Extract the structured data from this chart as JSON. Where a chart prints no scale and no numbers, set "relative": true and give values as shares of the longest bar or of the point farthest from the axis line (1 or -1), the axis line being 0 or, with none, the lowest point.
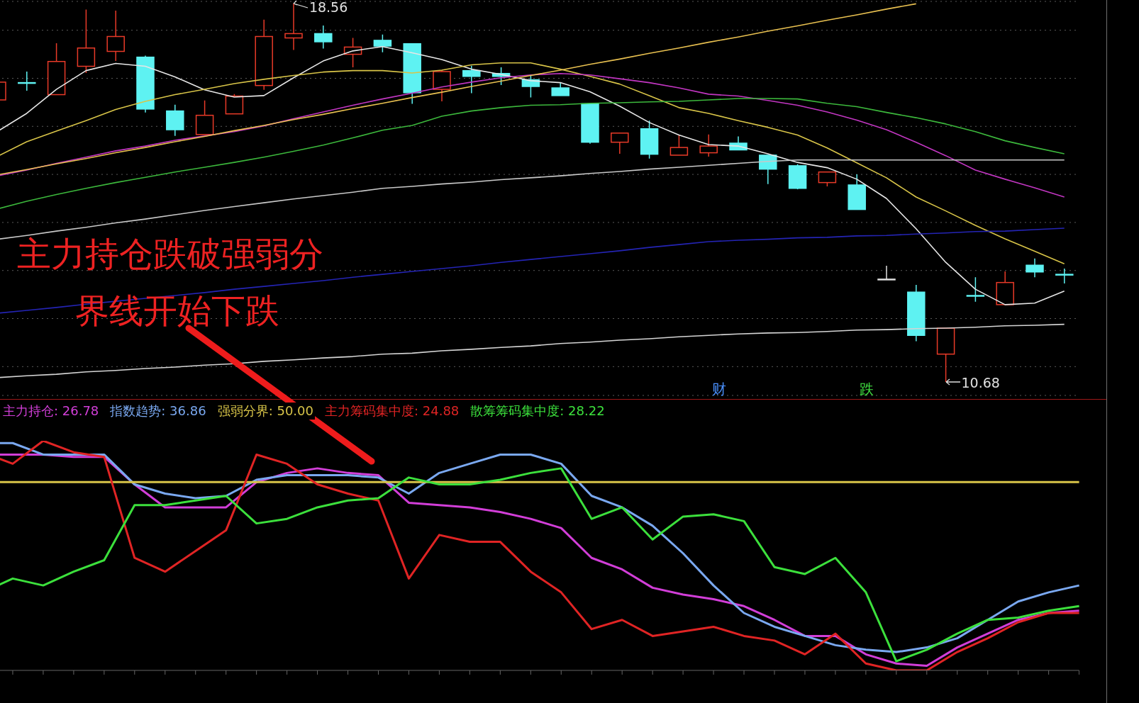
{
  "chart_data": [
    {
      "type": "candlestick",
      "categories": [
        null,
        null,
        null,
        null,
        null,
        null,
        null,
        null,
        null,
        null,
        null,
        null,
        null,
        null,
        null,
        null,
        null,
        null,
        null,
        null,
        null,
        null,
        null,
        null,
        null,
        null,
        null,
        null,
        null,
        null,
        null,
        null,
        null,
        null,
        null,
        null,
        null
      ],
      "ohlc": [
        [
          16.55,
          16.92,
          16.55,
          16.92
        ],
        [
          16.91,
          17.14,
          16.74,
          16.91
        ],
        [
          16.66,
          17.73,
          16.66,
          17.35
        ],
        [
          17.25,
          18.43,
          17.11,
          17.63
        ],
        [
          17.56,
          18.41,
          17.36,
          17.87
        ],
        [
          17.44,
          17.47,
          16.29,
          16.36
        ],
        [
          16.32,
          16.45,
          15.8,
          15.93
        ],
        [
          15.83,
          16.54,
          15.83,
          16.23
        ],
        [
          16.26,
          16.67,
          16.26,
          16.63
        ],
        [
          16.85,
          18.22,
          16.76,
          17.87
        ],
        [
          17.84,
          18.56,
          17.59,
          17.93
        ],
        [
          17.93,
          18.1,
          17.62,
          17.76
        ],
        [
          17.5,
          17.84,
          17.23,
          17.65
        ],
        [
          17.79,
          17.91,
          17.54,
          17.67
        ],
        [
          17.72,
          17.72,
          16.47,
          16.7
        ],
        [
          16.77,
          17.17,
          16.52,
          17.14
        ],
        [
          17.16,
          17.26,
          16.69,
          17.04
        ],
        [
          17.1,
          17.23,
          16.86,
          17.04
        ],
        [
          16.97,
          17.05,
          16.6,
          16.83
        ],
        [
          16.8,
          16.91,
          16.64,
          16.64
        ],
        [
          16.47,
          16.47,
          15.64,
          15.67
        ],
        [
          15.67,
          15.87,
          15.43,
          15.86
        ],
        [
          15.95,
          16.12,
          15.33,
          15.42
        ],
        [
          15.4,
          15.82,
          15.4,
          15.56
        ],
        [
          15.45,
          15.83,
          15.37,
          15.59
        ],
        [
          15.65,
          15.79,
          15.51,
          15.51
        ],
        [
          15.4,
          15.4,
          14.8,
          15.11
        ],
        [
          15.18,
          15.21,
          14.69,
          14.71
        ],
        [
          14.83,
          15.05,
          14.75,
          15.05
        ],
        [
          14.78,
          15.0,
          14.27,
          14.27
        ],
        [
          12.82,
          13.1,
          12.82,
          12.82
        ],
        [
          12.55,
          12.7,
          11.53,
          11.65
        ],
        [
          11.26,
          11.8,
          10.68,
          11.8
        ],
        [
          12.48,
          12.86,
          12.35,
          12.48
        ],
        [
          12.29,
          12.98,
          12.29,
          12.75
        ],
        [
          13.11,
          13.25,
          12.86,
          12.97
        ],
        [
          12.92,
          13.04,
          12.73,
          12.92
        ]
      ],
      "colors": [
        "#e83a28",
        "#5ef2f2",
        "#e83a28",
        "#e83a28",
        "#e83a28",
        "#5ef2f2",
        "#5ef2f2",
        "#e83a28",
        "#e83a28",
        "#e83a28",
        "#e83a28",
        "#5ef2f2",
        "#e83a28",
        "#5ef2f2",
        "#5ef2f2",
        "#e83a28",
        "#5ef2f2",
        "#5ef2f2",
        "#5ef2f2",
        "#5ef2f2",
        "#5ef2f2",
        "#e83a28",
        "#5ef2f2",
        "#e83a28",
        "#e83a28",
        "#5ef2f2",
        "#5ef2f2",
        "#5ef2f2",
        "#e83a28",
        "#5ef2f2",
        "#e0e0e0",
        "#5ef2f2",
        "#e83a28",
        "#5ef2f2",
        "#e83a28",
        "#5ef2f2",
        "#5ef2f2"
      ],
      "series": [
        {
          "type": "line",
          "color": "#e6e6e6",
          "values": [
            15.89,
            16.27,
            16.77,
            17.16,
            17.31,
            17.25,
            17.03,
            16.76,
            16.61,
            16.64,
            17.01,
            17.36,
            17.57,
            17.66,
            17.53,
            17.39,
            17.19,
            17.08,
            16.95,
            16.91,
            16.72,
            16.42,
            16.08,
            15.82,
            15.62,
            15.59,
            15.43,
            15.25,
            15.14,
            14.9,
            14.5,
            13.87,
            13.17,
            12.61,
            12.29,
            12.32,
            12.57
          ]
        },
        {
          "type": "line",
          "color": "#d8c448",
          "values": [
            15.37,
            15.68,
            15.9,
            16.12,
            16.35,
            16.52,
            16.66,
            16.77,
            16.89,
            16.98,
            17.06,
            17.13,
            17.16,
            17.16,
            17.11,
            17.17,
            17.28,
            17.32,
            17.32,
            17.19,
            17.04,
            16.88,
            16.64,
            16.39,
            16.27,
            16.12,
            15.98,
            15.82,
            15.55,
            15.24,
            14.93,
            14.53,
            14.24,
            13.94,
            13.66,
            13.4,
            13.14
          ]
        },
        {
          "type": "line",
          "color": "#c236c2",
          "values": [
            14.97,
            15.09,
            15.23,
            15.36,
            15.49,
            15.59,
            15.71,
            15.8,
            15.89,
            16.01,
            16.16,
            16.3,
            16.44,
            16.57,
            16.69,
            16.82,
            16.92,
            17.01,
            17.07,
            17.1,
            17.07,
            16.99,
            16.91,
            16.8,
            16.67,
            16.63,
            16.54,
            16.44,
            16.3,
            16.13,
            15.93,
            15.67,
            15.39,
            15.09,
            14.9,
            14.72,
            14.53
          ]
        },
        {
          "type": "line",
          "color": "#e8c050",
          "values": [
            14.99,
            15.1,
            15.22,
            15.33,
            15.45,
            15.56,
            15.68,
            15.79,
            15.91,
            16.02,
            16.14,
            16.25,
            16.37,
            16.48,
            16.6,
            16.71,
            16.83,
            16.94,
            17.06,
            17.17,
            17.29,
            17.4,
            17.52,
            17.63,
            17.75,
            17.86,
            17.98,
            18.09,
            18.21,
            18.32,
            18.44,
            18.55,
            null,
            null,
            null,
            null,
            null
          ]
        },
        {
          "type": "line",
          "color": "#3cb83c",
          "values": [
            14.28,
            14.44,
            14.58,
            14.71,
            14.83,
            14.94,
            15.05,
            15.15,
            15.25,
            15.36,
            15.48,
            15.61,
            15.76,
            15.92,
            16.02,
            16.21,
            16.32,
            16.39,
            16.44,
            16.45,
            16.48,
            16.49,
            16.51,
            16.52,
            16.55,
            16.58,
            16.58,
            16.57,
            16.48,
            16.41,
            16.29,
            16.18,
            16.05,
            15.89,
            15.7,
            15.56,
            15.43
          ]
        },
        {
          "type": "line",
          "color": "#c8c8c8",
          "values": [
            13.65,
            13.73,
            13.82,
            13.9,
            13.99,
            14.07,
            14.16,
            14.25,
            14.33,
            14.41,
            14.49,
            14.56,
            14.63,
            14.71,
            14.75,
            14.8,
            14.84,
            14.89,
            14.93,
            14.97,
            15.02,
            15.06,
            15.11,
            15.15,
            15.19,
            15.23,
            15.27,
            15.3,
            15.3,
            15.3,
            15.3,
            15.3,
            15.3,
            15.3,
            15.3,
            15.3,
            15.3
          ]
        },
        {
          "type": "line",
          "color": "#2424b4",
          "values": [
            12.11,
            12.17,
            12.23,
            12.3,
            12.36,
            12.42,
            12.48,
            12.54,
            12.61,
            12.67,
            12.73,
            12.79,
            12.86,
            12.92,
            12.98,
            13.04,
            13.1,
            13.17,
            13.23,
            13.29,
            13.35,
            13.41,
            13.48,
            13.54,
            13.6,
            13.63,
            13.65,
            13.68,
            13.69,
            13.72,
            13.73,
            13.76,
            13.78,
            13.81,
            13.82,
            13.85,
            13.88
          ]
        },
        {
          "type": "line",
          "color": "#d4d4d4",
          "values": [
            10.77,
            10.81,
            10.84,
            10.89,
            10.92,
            10.96,
            10.99,
            11.03,
            11.06,
            11.11,
            11.14,
            11.18,
            11.21,
            11.26,
            11.28,
            11.33,
            11.36,
            11.4,
            11.43,
            11.48,
            11.51,
            11.55,
            11.58,
            11.62,
            11.65,
            11.68,
            11.7,
            11.71,
            11.73,
            11.76,
            11.77,
            11.79,
            11.8,
            11.82,
            11.85,
            11.86,
            11.88
          ]
        }
      ],
      "ylim": [
        10.4,
        18.6
      ],
      "yticks": [
        {
          "value": 11,
          "label": null
        },
        {
          "value": 12,
          "label": null
        },
        {
          "value": 13,
          "label": null
        },
        {
          "value": 14,
          "label": null
        },
        {
          "value": 15,
          "label": null
        },
        {
          "value": 16,
          "label": null
        },
        {
          "value": 17,
          "label": null
        },
        {
          "value": 18,
          "label": null
        }
      ],
      "grid": "y",
      "tick_labels": false,
      "annotations": [
        "18.56",
        "10.68",
        "财",
        "跌",
        "主力持仓跌破强弱分界线开始下跌"
      ]
    },
    {
      "type": "line",
      "relative": true,
      "categories": [
        null,
        null,
        null,
        null,
        null,
        null,
        null,
        null,
        null,
        null,
        null,
        null,
        null,
        null,
        null,
        null,
        null,
        null,
        null,
        null,
        null,
        null,
        null,
        null,
        null,
        null,
        null,
        null,
        null,
        null,
        null,
        null,
        null,
        null,
        null,
        null,
        null
      ],
      "legend": "top left",
      "series": [
        {
          "name": "主力持仓: 26.78",
          "color": "#d23ed8",
          "values": [
            0.94,
            0.94,
            0.94,
            0.93,
            0.93,
            0.81,
            0.71,
            0.71,
            0.71,
            0.82,
            0.86,
            0.88,
            0.86,
            0.85,
            0.73,
            0.72,
            0.71,
            0.69,
            0.66,
            0.62,
            0.49,
            0.44,
            0.36,
            0.33,
            0.31,
            0.28,
            0.22,
            0.15,
            0.15,
            0.07,
            0.03,
            0.02,
            0.1,
            0.16,
            0.22,
            0.25,
            0.26
          ]
        },
        {
          "name": "指数趋势: 36.86",
          "color": "#7aa8f0",
          "values": [
            0.99,
            0.99,
            0.94,
            0.94,
            0.94,
            0.81,
            0.77,
            0.75,
            0.76,
            0.83,
            0.85,
            0.85,
            0.85,
            0.84,
            0.77,
            0.86,
            0.9,
            0.94,
            0.94,
            0.9,
            0.76,
            0.71,
            0.63,
            0.51,
            0.37,
            0.25,
            0.19,
            0.15,
            0.11,
            0.09,
            0.08,
            0.1,
            0.14,
            0.22,
            0.3,
            0.34,
            0.37
          ]
        },
        {
          "name": "强弱分界: 50.00",
          "color": "#d8c448",
          "values": [
            0.82,
            0.82,
            0.82,
            0.82,
            0.82,
            0.82,
            0.82,
            0.82,
            0.82,
            0.82,
            0.82,
            0.82,
            0.82,
            0.82,
            0.82,
            0.82,
            0.82,
            0.82,
            0.82,
            0.82,
            0.82,
            0.82,
            0.82,
            0.82,
            0.82,
            0.82,
            0.82,
            0.82,
            0.82,
            0.82,
            0.82,
            0.82,
            0.82,
            0.82,
            0.82,
            0.82,
            0.82
          ]
        },
        {
          "name": "主力筹码集中度: 24.88",
          "color": "#e02424",
          "values": [
            0.95,
            0.9,
            1.0,
            0.95,
            0.93,
            0.49,
            0.43,
            0.52,
            0.61,
            0.94,
            0.9,
            0.81,
            0.77,
            0.74,
            0.4,
            0.59,
            0.56,
            0.56,
            0.43,
            0.34,
            0.18,
            0.22,
            0.15,
            0.17,
            0.19,
            0.15,
            0.13,
            0.07,
            0.16,
            0.03,
            0.0,
            0.0,
            0.08,
            0.14,
            0.21,
            0.25,
            0.25
          ]
        },
        {
          "name": "散筹筹码集中度: 28.22",
          "color": "#3ce03c",
          "values": [
            0.34,
            0.4,
            0.37,
            0.43,
            0.48,
            0.72,
            0.72,
            0.74,
            0.76,
            0.64,
            0.66,
            0.71,
            0.74,
            0.75,
            0.84,
            0.81,
            0.81,
            0.83,
            0.86,
            0.88,
            0.66,
            0.71,
            0.57,
            0.67,
            0.68,
            0.65,
            0.45,
            0.42,
            0.49,
            0.34,
            0.04,
            0.09,
            0.16,
            0.22,
            0.23,
            0.26,
            0.28
          ]
        }
      ]
    }
  ]
}
